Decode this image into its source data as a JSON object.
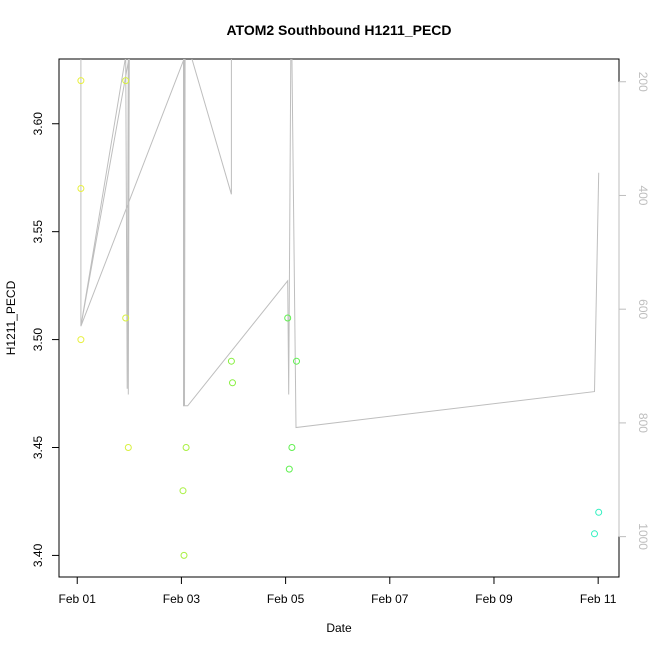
{
  "chart_data": {
    "type": "scatter",
    "title": "ATOM2 Southbound H1211_PECD",
    "xlabel": "Date",
    "ylabel": "H1211_PECD",
    "x_ticks": [
      "Feb 01",
      "Feb 03",
      "Feb 05",
      "Feb 07",
      "Feb 09",
      "Feb 11"
    ],
    "x_tick_days": [
      0,
      2,
      4,
      6,
      8,
      10
    ],
    "xlim_days": [
      -0.35,
      10.4
    ],
    "ylim": [
      3.39,
      3.63
    ],
    "y_ticks": [
      3.4,
      3.45,
      3.5,
      3.55,
      3.6
    ],
    "y_tick_labels": [
      "3.40",
      "3.45",
      "3.50",
      "3.55",
      "3.60"
    ],
    "right_axis": {
      "ticks": [
        200,
        400,
        600,
        800,
        1000
      ],
      "tick_labels": [
        "200",
        "400",
        "600",
        "800",
        "1000"
      ],
      "lim": [
        160,
        1071
      ],
      "reversed": true,
      "color": "#bebebe"
    },
    "points": [
      {
        "day": 0.07,
        "y": 3.62,
        "color": "#e8f040"
      },
      {
        "day": 0.07,
        "y": 3.57,
        "color": "#e8f040"
      },
      {
        "day": 0.07,
        "y": 3.5,
        "color": "#e8f040"
      },
      {
        "day": 0.93,
        "y": 3.62,
        "color": "#d8f040"
      },
      {
        "day": 0.93,
        "y": 3.51,
        "color": "#d8f040"
      },
      {
        "day": 0.98,
        "y": 3.45,
        "color": "#d8f040"
      },
      {
        "day": 2.03,
        "y": 3.43,
        "color": "#a8f040"
      },
      {
        "day": 2.05,
        "y": 3.4,
        "color": "#a8f040"
      },
      {
        "day": 2.09,
        "y": 3.45,
        "color": "#a8f040"
      },
      {
        "day": 2.96,
        "y": 3.49,
        "color": "#88f040"
      },
      {
        "day": 2.98,
        "y": 3.48,
        "color": "#88f040"
      },
      {
        "day": 4.04,
        "y": 3.51,
        "color": "#60f050"
      },
      {
        "day": 4.07,
        "y": 3.44,
        "color": "#60f050"
      },
      {
        "day": 4.12,
        "y": 3.45,
        "color": "#60f050"
      },
      {
        "day": 4.21,
        "y": 3.49,
        "color": "#60f050"
      },
      {
        "day": 9.93,
        "y": 3.41,
        "color": "#30f0c0"
      },
      {
        "day": 10.01,
        "y": 3.42,
        "color": "#30f0c0"
      }
    ],
    "line_series": {
      "color": "#bebebe",
      "points": [
        {
          "day": 0.07,
          "y2": 155
        },
        {
          "day": 0.07,
          "y2": 630
        },
        {
          "day": 0.93,
          "y2": 155
        },
        {
          "day": 0.96,
          "y2": 740
        },
        {
          "day": 0.98,
          "y2": 155
        },
        {
          "day": 0.98,
          "y2": 750
        },
        {
          "day": 1.0,
          "y2": 155
        },
        {
          "day": 0.07,
          "y2": 630
        },
        {
          "day": 2.07,
          "y2": 155
        },
        {
          "day": 2.06,
          "y2": 770
        },
        {
          "day": 2.06,
          "y2": 115
        },
        {
          "day": 2.96,
          "y2": 398
        },
        {
          "day": 2.96,
          "y2": 155
        },
        {
          "day": 2.96,
          "y2": 155
        },
        {
          "day": 2.04,
          "y2": 155
        },
        {
          "day": 2.04,
          "y2": 770
        },
        {
          "day": 2.12,
          "y2": 770
        },
        {
          "day": 4.04,
          "y2": 550
        },
        {
          "day": 4.06,
          "y2": 750
        },
        {
          "day": 4.1,
          "y2": 155
        },
        {
          "day": 4.12,
          "y2": 155
        },
        {
          "day": 4.2,
          "y2": 808
        },
        {
          "day": 9.93,
          "y2": 745
        },
        {
          "day": 10.01,
          "y2": 360
        }
      ]
    }
  }
}
